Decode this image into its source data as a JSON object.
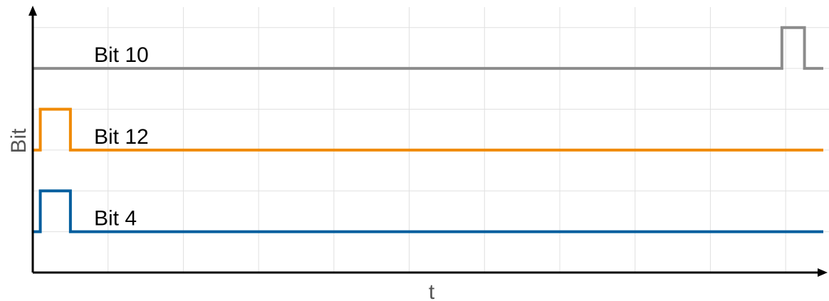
{
  "chart_data": {
    "type": "line",
    "title": "",
    "xlabel": "t",
    "ylabel": "Bit",
    "grid": true,
    "x_range": [
      0,
      10.5
    ],
    "y_range": [
      0,
      6.5
    ],
    "series": [
      {
        "name": "Bit 10",
        "color": "#8c8c8c",
        "baseline": 5,
        "points": [
          [
            0,
            5
          ],
          [
            9.95,
            5
          ],
          [
            9.95,
            6
          ],
          [
            10.25,
            6
          ],
          [
            10.25,
            5
          ],
          [
            10.5,
            5
          ]
        ]
      },
      {
        "name": "Bit 12",
        "color": "#f08a00",
        "baseline": 3,
        "points": [
          [
            0,
            3
          ],
          [
            0.1,
            3
          ],
          [
            0.1,
            4
          ],
          [
            0.5,
            4
          ],
          [
            0.5,
            3
          ],
          [
            10.5,
            3
          ]
        ]
      },
      {
        "name": "Bit 4",
        "color": "#005e9e",
        "baseline": 1,
        "points": [
          [
            0,
            1
          ],
          [
            0.1,
            1
          ],
          [
            0.1,
            2
          ],
          [
            0.5,
            2
          ],
          [
            0.5,
            1
          ],
          [
            10.5,
            1
          ]
        ]
      }
    ]
  }
}
